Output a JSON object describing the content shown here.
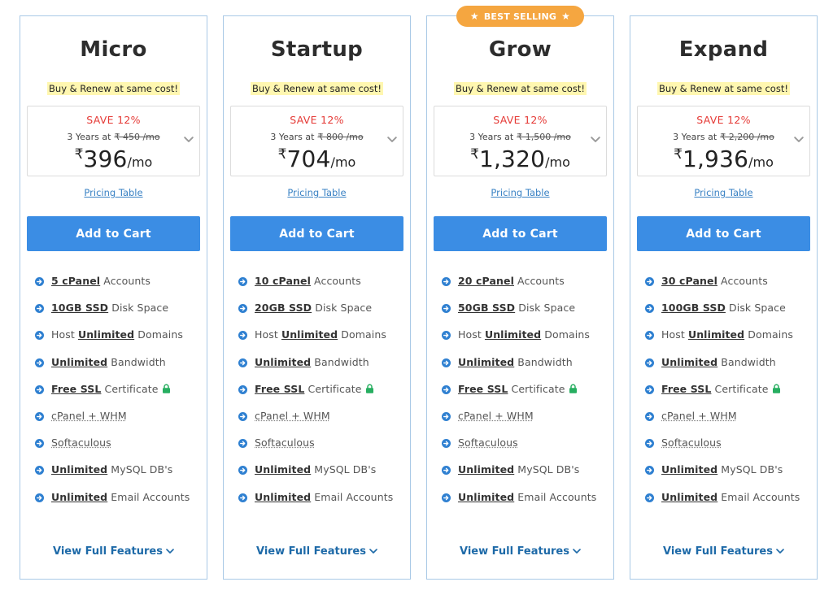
{
  "badge": {
    "label": "BEST SELLING"
  },
  "plans": [
    {
      "name": "Micro",
      "renew": "Buy & Renew at same cost!",
      "save": "SAVE 12%",
      "term": "3 Years at",
      "old_price": "₹ 450 /mo",
      "currency": "₹",
      "price": "396",
      "per": "/mo",
      "pricing_table": "Pricing Table",
      "cart": "Add to Cart",
      "features": [
        {
          "bold": "5 cPanel",
          "text": " Accounts"
        },
        {
          "bold": "10GB SSD",
          "text": " Disk Space"
        },
        {
          "pre": "Host ",
          "bold": "Unlimited",
          "text": " Domains"
        },
        {
          "bold": "Unlimited",
          "text": " Bandwidth"
        },
        {
          "bold": "Free SSL",
          "text": " Certificate",
          "lock": true
        },
        {
          "plain": "cPanel + WHM"
        },
        {
          "plain": "Softaculous"
        },
        {
          "bold": "Unlimited",
          "text": " MySQL DB's"
        },
        {
          "bold": "Unlimited",
          "text": " Email Accounts"
        }
      ],
      "view_full": "View Full Features"
    },
    {
      "name": "Startup",
      "renew": "Buy & Renew at same cost!",
      "save": "SAVE 12%",
      "term": "3 Years at",
      "old_price": "₹ 800 /mo",
      "currency": "₹",
      "price": "704",
      "per": "/mo",
      "pricing_table": "Pricing Table",
      "cart": "Add to Cart",
      "features": [
        {
          "bold": "10 cPanel",
          "text": " Accounts"
        },
        {
          "bold": "20GB SSD",
          "text": " Disk Space"
        },
        {
          "pre": "Host ",
          "bold": "Unlimited",
          "text": " Domains"
        },
        {
          "bold": "Unlimited",
          "text": " Bandwidth"
        },
        {
          "bold": "Free SSL",
          "text": " Certificate",
          "lock": true
        },
        {
          "plain": "cPanel + WHM"
        },
        {
          "plain": "Softaculous"
        },
        {
          "bold": "Unlimited",
          "text": " MySQL DB's"
        },
        {
          "bold": "Unlimited",
          "text": " Email Accounts"
        }
      ],
      "view_full": "View Full Features"
    },
    {
      "name": "Grow",
      "renew": "Buy & Renew at same cost!",
      "save": "SAVE 12%",
      "term": "3 Years at",
      "old_price": "₹ 1,500 /mo",
      "currency": "₹",
      "price": "1,320",
      "per": "/mo",
      "pricing_table": "Pricing Table",
      "cart": "Add to Cart",
      "features": [
        {
          "bold": "20 cPanel",
          "text": " Accounts"
        },
        {
          "bold": "50GB SSD",
          "text": " Disk Space"
        },
        {
          "pre": "Host ",
          "bold": "Unlimited",
          "text": " Domains"
        },
        {
          "bold": "Unlimited",
          "text": " Bandwidth"
        },
        {
          "bold": "Free SSL",
          "text": " Certificate",
          "lock": true
        },
        {
          "plain": "cPanel + WHM"
        },
        {
          "plain": "Softaculous"
        },
        {
          "bold": "Unlimited",
          "text": " MySQL DB's"
        },
        {
          "bold": "Unlimited",
          "text": " Email Accounts"
        }
      ],
      "view_full": "View Full Features"
    },
    {
      "name": "Expand",
      "renew": "Buy & Renew at same cost!",
      "save": "SAVE 12%",
      "term": "3 Years at",
      "old_price": "₹ 2,200 /mo",
      "currency": "₹",
      "price": "1,936",
      "per": "/mo",
      "pricing_table": "Pricing Table",
      "cart": "Add to Cart",
      "features": [
        {
          "bold": "30 cPanel",
          "text": " Accounts"
        },
        {
          "bold": "100GB SSD",
          "text": " Disk Space"
        },
        {
          "pre": "Host ",
          "bold": "Unlimited",
          "text": " Domains"
        },
        {
          "bold": "Unlimited",
          "text": " Bandwidth"
        },
        {
          "bold": "Free SSL",
          "text": " Certificate",
          "lock": true
        },
        {
          "plain": "cPanel + WHM"
        },
        {
          "plain": "Softaculous"
        },
        {
          "bold": "Unlimited",
          "text": " MySQL DB's"
        },
        {
          "bold": "Unlimited",
          "text": " Email Accounts"
        }
      ],
      "view_full": "View Full Features"
    }
  ],
  "colors": {
    "accent": "#3b8de4",
    "save_red": "#e53935",
    "badge_orange": "#f5a640",
    "link_blue": "#3a82c4",
    "bullet_blue": "#2f80d1",
    "lock_green": "#27ae60",
    "highlight_yellow": "#fff7b0",
    "card_border": "#a9c9e6"
  },
  "icons": {
    "bullet": "arrow-right-circle-icon",
    "lock": "lock-icon",
    "chevron": "chevron-down-icon",
    "star": "star-icon"
  }
}
